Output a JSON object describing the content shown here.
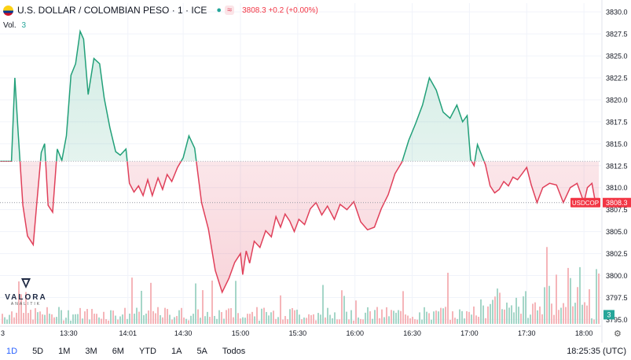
{
  "header": {
    "title": "U.S. DOLLAR / COLOMBIAN PESO · 1 · ICE",
    "wave_symbol": "≈",
    "price_info": "3808.3 +0.2 (+0.00%)"
  },
  "volume": {
    "label": "Vol.",
    "value": "3"
  },
  "logo": {
    "name": "VALORA",
    "sub": "ANALITIK"
  },
  "bottom": {
    "ranges": [
      "1D",
      "5D",
      "1M",
      "3M",
      "6M",
      "YTD",
      "1A",
      "5A",
      "Todos"
    ],
    "active_range": "1D",
    "clock": "18:25:35 (UTC)"
  },
  "colors": {
    "up": "#22a079",
    "down": "#e0405a",
    "tag": "#f23645",
    "vol_tag": "#26a69a"
  },
  "chart_data": {
    "type": "line",
    "symbol_tag": "USDCOP",
    "last_price": "3808.3",
    "last_volume": "3",
    "baseline": 3813,
    "ylim": [
      3794.5,
      3831
    ],
    "yticks": [
      3795,
      3797.5,
      3800,
      3802.5,
      3805,
      3807.5,
      3810,
      3812.5,
      3815,
      3817.5,
      3820,
      3822.5,
      3825,
      3827.5,
      3830
    ],
    "ytick_labels": [
      "3795.0",
      "3797.5",
      "3800.0",
      "3802.5",
      "3805.0",
      "3807.5",
      "3810.0",
      "3812.5",
      "3815.0",
      "3817.5",
      "3820.0",
      "3822.5",
      "3825.0",
      "3827.5",
      "3830.0"
    ],
    "xlim": [
      12.9,
      18.15
    ],
    "xticks": [
      13.5,
      14.0167,
      14.5,
      15.0,
      15.5,
      16.0,
      16.5,
      17.0,
      17.5,
      18.0
    ],
    "xtick_labels": [
      "13:30",
      "14:01",
      "14:30",
      "15:00",
      "15:30",
      "16:00",
      "16:30",
      "17:00",
      "17:30",
      "18:00"
    ],
    "left_edge_label": "3",
    "series": [
      {
        "x": [
          12.9,
          13.0,
          13.03,
          13.06,
          13.1,
          13.14,
          13.19,
          13.22,
          13.26,
          13.29,
          13.32,
          13.36,
          13.4,
          13.44,
          13.48,
          13.52,
          13.56,
          13.6,
          13.63,
          13.67,
          13.72,
          13.77,
          13.81,
          13.86,
          13.91,
          13.95,
          14.0,
          14.03,
          14.07,
          14.11,
          14.15,
          14.19,
          14.23,
          14.28,
          14.32,
          14.36,
          14.4,
          14.45,
          14.5,
          14.55,
          14.6,
          14.66,
          14.72,
          14.78,
          14.84,
          14.9,
          14.95,
          15.0,
          15.02,
          15.05,
          15.08,
          15.12,
          15.17,
          15.22,
          15.27,
          15.31,
          15.35,
          15.39,
          15.43,
          15.47,
          15.51,
          15.56,
          15.61,
          15.66,
          15.71,
          15.76,
          15.82,
          15.87,
          15.93,
          15.99,
          16.05,
          16.11,
          16.17,
          16.23,
          16.29,
          16.35,
          16.41,
          16.47,
          16.53,
          16.59,
          16.65,
          16.71,
          16.77,
          16.83,
          16.89,
          16.94,
          16.98,
          17.01,
          17.04,
          17.07,
          17.1,
          17.14,
          17.18,
          17.22,
          17.26,
          17.3,
          17.34,
          17.38,
          17.42,
          17.46,
          17.5,
          17.54,
          17.59,
          17.64,
          17.7,
          17.76,
          17.82,
          17.88,
          17.94,
          18.0,
          18.03,
          18.07,
          18.1,
          18.13
        ],
        "y": [
          3813,
          3813,
          3822.5,
          3816,
          3808,
          3804.5,
          3803.5,
          3808,
          3814,
          3815,
          3808,
          3807.2,
          3814.4,
          3813.1,
          3815.9,
          3822.8,
          3824.1,
          3827.8,
          3826.9,
          3820.6,
          3824.7,
          3824.1,
          3820.2,
          3816.8,
          3814.1,
          3813.7,
          3814.4,
          3810.5,
          3809.5,
          3810.2,
          3809.1,
          3810.9,
          3809.1,
          3811.1,
          3809.8,
          3811.5,
          3810.7,
          3812.3,
          3813.4,
          3815.9,
          3814.5,
          3808.3,
          3805.3,
          3800.6,
          3798.1,
          3799.7,
          3801.5,
          3802.5,
          3800.1,
          3802.8,
          3801.4,
          3803.9,
          3803.2,
          3805.1,
          3804.4,
          3806.7,
          3805.5,
          3807.0,
          3806.2,
          3805.0,
          3806.4,
          3805.8,
          3807.6,
          3808.3,
          3806.9,
          3807.9,
          3806.4,
          3808.1,
          3807.5,
          3808.4,
          3806.1,
          3805.2,
          3805.5,
          3807.6,
          3809.2,
          3811.6,
          3812.9,
          3815.4,
          3817.3,
          3819.4,
          3822.5,
          3821.1,
          3818.6,
          3817.9,
          3819.4,
          3817.5,
          3818.2,
          3813.2,
          3812.5,
          3814.9,
          3813.9,
          3812.6,
          3810.2,
          3809.4,
          3809.8,
          3810.7,
          3810.2,
          3811.2,
          3810.9,
          3811.6,
          3812.3,
          3810.3,
          3808.3,
          3810.0,
          3810.5,
          3810.3,
          3808.3,
          3810.0,
          3810.5,
          3808.3,
          3810.0,
          3810.5,
          3808.3,
          3808.3
        ]
      }
    ]
  }
}
